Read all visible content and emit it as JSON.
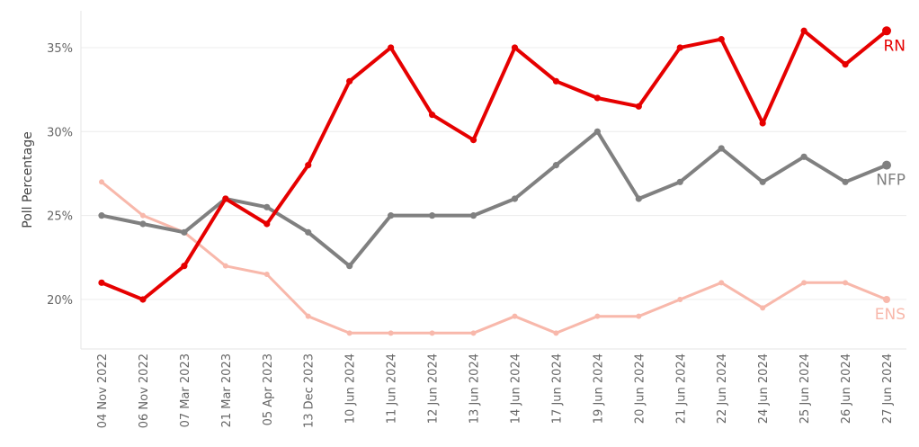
{
  "chart_data": {
    "type": "line",
    "title": "",
    "xlabel": "",
    "ylabel": "Poll Percentage",
    "categories": [
      "04 Nov 2022",
      "06 Nov 2022",
      "07 Mar 2023",
      "21 Mar 2023",
      "05 Apr 2023",
      "13 Dec 2023",
      "10 Jun 2024",
      "11 Jun 2024",
      "12 Jun 2024",
      "13 Jun 2024",
      "14 Jun 2024",
      "17 Jun 2024",
      "19 Jun 2024",
      "20 Jun 2024",
      "21 Jun 2024",
      "22 Jun 2024",
      "24 Jun 2024",
      "25 Jun 2024",
      "26 Jun 2024",
      "27 Jun 2024"
    ],
    "ylim": [
      17,
      38
    ],
    "yticks": [
      20,
      25,
      30,
      35
    ],
    "ytick_labels": [
      "20%",
      "25%",
      "30%",
      "35%"
    ],
    "grid": true,
    "legend": "inline-end-labels",
    "series": [
      {
        "name": "ENS",
        "color": "#f8b8ab",
        "width": 3,
        "values": [
          27,
          25,
          24,
          22,
          21.5,
          19,
          18,
          18,
          18,
          18,
          19,
          18,
          19,
          19,
          20,
          21,
          19.5,
          21,
          21,
          20
        ]
      },
      {
        "name": "NFP",
        "color": "#808080",
        "width": 4,
        "values": [
          25,
          24.5,
          24,
          26,
          25.5,
          24,
          22,
          25,
          25,
          25,
          26,
          28,
          30,
          26,
          27,
          29,
          27,
          28.5,
          27,
          28
        ]
      },
      {
        "name": "RN",
        "color": "#e60000",
        "width": 4,
        "values": [
          21,
          20,
          22,
          26,
          24.5,
          28,
          33,
          35,
          31,
          29.5,
          35,
          33,
          32,
          31.5,
          35,
          35.5,
          30.5,
          36,
          34,
          36
        ]
      }
    ]
  }
}
